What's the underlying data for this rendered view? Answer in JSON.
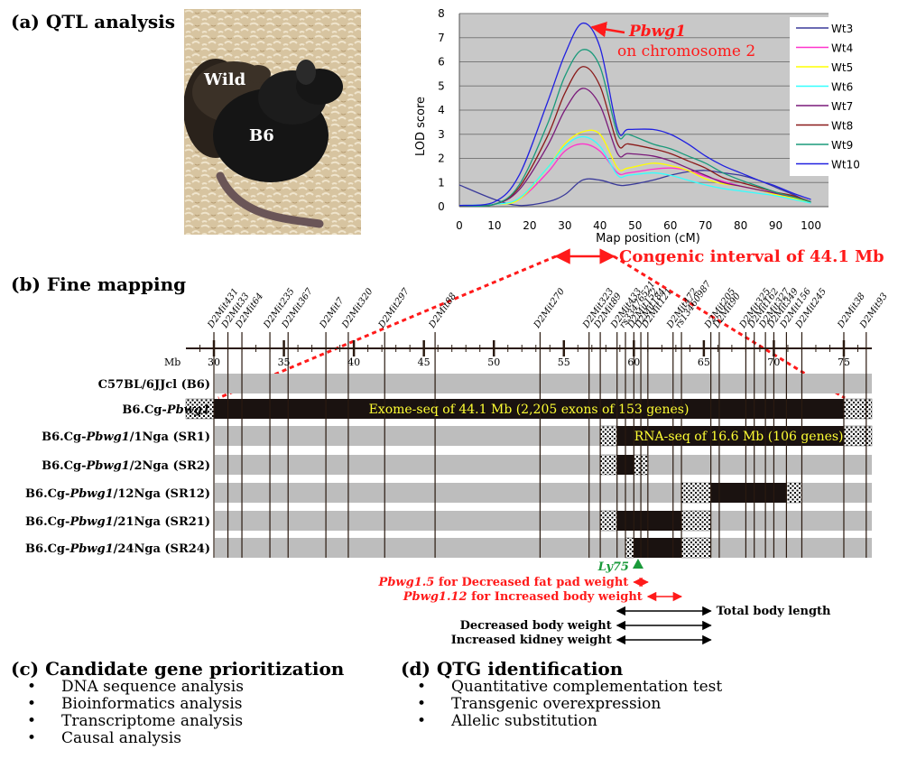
{
  "sections": {
    "a": "(a) QTL analysis",
    "b": "(b) Fine mapping",
    "c": "(c) Candidate gene prioritization",
    "d": "(d) QTG identification"
  },
  "photo": {
    "label_wild": "Wild",
    "label_b6": "B6",
    "colors": {
      "bedding": "#d9c7a2",
      "mouse": "#151515"
    }
  },
  "lod_chart": {
    "type": "line",
    "xlabel": "Map position (cM)",
    "ylabel": "LOD score",
    "xlim": [
      0,
      105
    ],
    "ylim": [
      0,
      8
    ],
    "xticks": [
      0,
      10,
      20,
      30,
      40,
      50,
      60,
      70,
      80,
      90,
      100
    ],
    "yticks": [
      0,
      1,
      2,
      3,
      4,
      5,
      6,
      7,
      8
    ],
    "grid": true,
    "legend_position": "right",
    "annotation": {
      "gene": "Pbwg1",
      "text": "on chromosome 2"
    },
    "x": [
      0,
      10,
      17,
      25,
      30,
      35,
      40,
      45,
      48,
      55,
      60,
      65,
      70,
      75,
      80,
      85,
      90,
      95,
      100
    ],
    "series": [
      {
        "name": "Wt3",
        "color": "#3a3a9a",
        "values": [
          0.9,
          0.3,
          0.05,
          0.2,
          0.5,
          1.1,
          1.1,
          0.9,
          0.9,
          1.1,
          1.3,
          1.45,
          1.5,
          1.4,
          1.3,
          1.1,
          0.8,
          0.5,
          0.15
        ]
      },
      {
        "name": "Wt4",
        "color": "#ff33cc",
        "values": [
          0.05,
          0.1,
          0.3,
          1.4,
          2.3,
          2.6,
          2.3,
          1.4,
          1.4,
          1.55,
          1.6,
          1.5,
          1.25,
          1.05,
          0.85,
          0.7,
          0.55,
          0.35,
          0.15
        ]
      },
      {
        "name": "Wt5",
        "color": "#ffff00",
        "values": [
          0.05,
          0.1,
          0.3,
          1.6,
          2.6,
          3.1,
          3.0,
          1.6,
          1.6,
          1.8,
          1.7,
          1.5,
          1.15,
          0.95,
          0.85,
          0.7,
          0.5,
          0.35,
          0.15
        ]
      },
      {
        "name": "Wt6",
        "color": "#33ffff",
        "values": [
          0.05,
          0.1,
          0.35,
          1.6,
          2.5,
          2.9,
          2.5,
          1.3,
          1.3,
          1.4,
          1.3,
          1.1,
          0.9,
          0.75,
          0.65,
          0.55,
          0.45,
          0.3,
          0.15
        ]
      },
      {
        "name": "Wt7",
        "color": "#7a1a7a",
        "values": [
          0.05,
          0.1,
          0.7,
          2.5,
          4.0,
          4.9,
          4.2,
          2.2,
          2.2,
          2.1,
          1.9,
          1.6,
          1.3,
          1.0,
          0.85,
          0.7,
          0.55,
          0.4,
          0.2
        ]
      },
      {
        "name": "Wt8",
        "color": "#8a1a1a",
        "values": [
          0.05,
          0.1,
          0.8,
          2.9,
          4.7,
          5.8,
          5.0,
          2.6,
          2.6,
          2.4,
          2.2,
          1.9,
          1.6,
          1.2,
          1.0,
          0.8,
          0.6,
          0.45,
          0.2
        ]
      },
      {
        "name": "Wt9",
        "color": "#1a9a7a",
        "values": [
          0.05,
          0.1,
          0.9,
          3.4,
          5.4,
          6.5,
          5.8,
          3.0,
          3.0,
          2.6,
          2.4,
          2.1,
          1.8,
          1.4,
          1.1,
          0.85,
          0.6,
          0.4,
          0.2
        ]
      },
      {
        "name": "Wt10",
        "color": "#2020e0",
        "values": [
          0.05,
          0.2,
          1.3,
          4.3,
          6.3,
          7.6,
          6.6,
          3.2,
          3.2,
          3.2,
          3.0,
          2.6,
          2.1,
          1.7,
          1.4,
          1.1,
          0.85,
          0.55,
          0.3
        ]
      }
    ]
  },
  "congenic_label": "Congenic interval of 44.1 Mb",
  "fine_map": {
    "mb_label": "Mb",
    "mb_range": [
      28,
      77
    ],
    "major_ticks": [
      30,
      35,
      40,
      45,
      50,
      55,
      60,
      65,
      70,
      75
    ],
    "markers": [
      {
        "name": "D2Mit431",
        "pos": 30.0
      },
      {
        "name": "D2Mit33",
        "pos": 31.0
      },
      {
        "name": "D2Mit64",
        "pos": 32.0
      },
      {
        "name": "D2Mit235",
        "pos": 34.0
      },
      {
        "name": "D2Mit367",
        "pos": 35.3
      },
      {
        "name": "D2Mit7",
        "pos": 38.0
      },
      {
        "name": "D2Mit320",
        "pos": 39.6
      },
      {
        "name": "D2Mit297",
        "pos": 42.2
      },
      {
        "name": "D2Mit88",
        "pos": 45.8
      },
      {
        "name": "D2Mit270",
        "pos": 53.3
      },
      {
        "name": "D2Mit323",
        "pos": 56.8
      },
      {
        "name": "D2Mit89",
        "pos": 57.6
      },
      {
        "name": "D2Mit433",
        "pos": 58.8
      },
      {
        "name": "rs33476521",
        "pos": 59.4
      },
      {
        "name": "D2Mit152",
        "pos": 60.0
      },
      {
        "name": "D2Mit184",
        "pos": 60.5
      },
      {
        "name": "D2Mit121",
        "pos": 61.0
      },
      {
        "name": "D2Mit472",
        "pos": 62.8
      },
      {
        "name": "rs13460987",
        "pos": 63.4
      },
      {
        "name": "D2Mit205",
        "pos": 65.5
      },
      {
        "name": "D2Mit90",
        "pos": 66.1
      },
      {
        "name": "D2Mit325",
        "pos": 68.0
      },
      {
        "name": "D2Mit162",
        "pos": 68.6
      },
      {
        "name": "D2Mit327",
        "pos": 69.4
      },
      {
        "name": "D2Mit349",
        "pos": 70.0
      },
      {
        "name": "D2Mit156",
        "pos": 70.9
      },
      {
        "name": "D2Mit245",
        "pos": 72.0
      },
      {
        "name": "D2Mit38",
        "pos": 75.0
      },
      {
        "name": "D2Mit93",
        "pos": 76.6
      }
    ],
    "strains": [
      {
        "label": "C57BL/6JJcl (B6)",
        "segments": []
      },
      {
        "label": "B6.Cg-Pbwg1",
        "segments": [
          {
            "from": 28.0,
            "to": 30.0,
            "kind": "hatch"
          },
          {
            "from": 30.0,
            "to": 75.0,
            "kind": "wild"
          },
          {
            "from": 75.0,
            "to": 77.0,
            "kind": "hatch"
          }
        ],
        "note": "Exome-seq of 44.1 Mb (2,205 exons of 153 genes)"
      },
      {
        "label": "B6.Cg-Pbwg1/1Nga (SR1)",
        "segments": [
          {
            "from": 57.6,
            "to": 58.8,
            "kind": "hatch"
          },
          {
            "from": 58.8,
            "to": 75.0,
            "kind": "wild"
          },
          {
            "from": 75.0,
            "to": 77.0,
            "kind": "hatch"
          }
        ],
        "note": "RNA-seq of 16.6 Mb (106 genes)"
      },
      {
        "label": "B6.Cg-Pbwg1/2Nga (SR2)",
        "segments": [
          {
            "from": 57.6,
            "to": 58.8,
            "kind": "hatch"
          },
          {
            "from": 58.8,
            "to": 60.0,
            "kind": "wild"
          },
          {
            "from": 60.0,
            "to": 61.0,
            "kind": "hatch"
          }
        ]
      },
      {
        "label": "B6.Cg-Pbwg1/12Nga (SR12)",
        "segments": [
          {
            "from": 63.4,
            "to": 65.5,
            "kind": "hatch"
          },
          {
            "from": 65.5,
            "to": 70.9,
            "kind": "wild"
          },
          {
            "from": 70.9,
            "to": 72.0,
            "kind": "hatch"
          }
        ]
      },
      {
        "label": "B6.Cg-Pbwg1/21Nga (SR21)",
        "segments": [
          {
            "from": 57.6,
            "to": 58.8,
            "kind": "hatch"
          },
          {
            "from": 58.8,
            "to": 63.4,
            "kind": "wild"
          },
          {
            "from": 63.4,
            "to": 65.5,
            "kind": "hatch"
          }
        ]
      },
      {
        "label": "B6.Cg-Pbwg1/24Nga (SR24)",
        "segments": [
          {
            "from": 59.4,
            "to": 60.0,
            "kind": "hatch"
          },
          {
            "from": 60.0,
            "to": 63.4,
            "kind": "wild"
          },
          {
            "from": 63.4,
            "to": 65.5,
            "kind": "hatch"
          }
        ]
      }
    ],
    "gene_marker": {
      "name": "Ly75",
      "pos": 60.3,
      "color": "#1a9a3a"
    },
    "qtl_intervals": [
      {
        "name": "Pbwg1.5",
        "desc": " for Decreased fat pad weight",
        "from": 60.0,
        "to": 61.0,
        "color": "red"
      },
      {
        "name": "Pbwg1.12",
        "desc": " for Increased body weight",
        "from": 61.0,
        "to": 63.4,
        "color": "red"
      },
      {
        "name": "",
        "desc": "Total body length",
        "from": 58.8,
        "to": 65.5,
        "color": "black",
        "label_side": "right"
      },
      {
        "name": "",
        "desc": "Decreased body weight",
        "from": 58.8,
        "to": 65.5,
        "color": "black",
        "label_side": "left"
      },
      {
        "name": "",
        "desc": "Increased kidney weight",
        "from": 58.8,
        "to": 65.5,
        "color": "black",
        "label_side": "left"
      }
    ]
  },
  "candidate_list": [
    "DNA sequence analysis",
    "Bioinformatics analysis",
    "Transcriptome analysis",
    "Causal analysis"
  ],
  "qtg_list": [
    "Quantitative complementation test",
    "Transgenic overexpression",
    "Allelic substitution"
  ]
}
